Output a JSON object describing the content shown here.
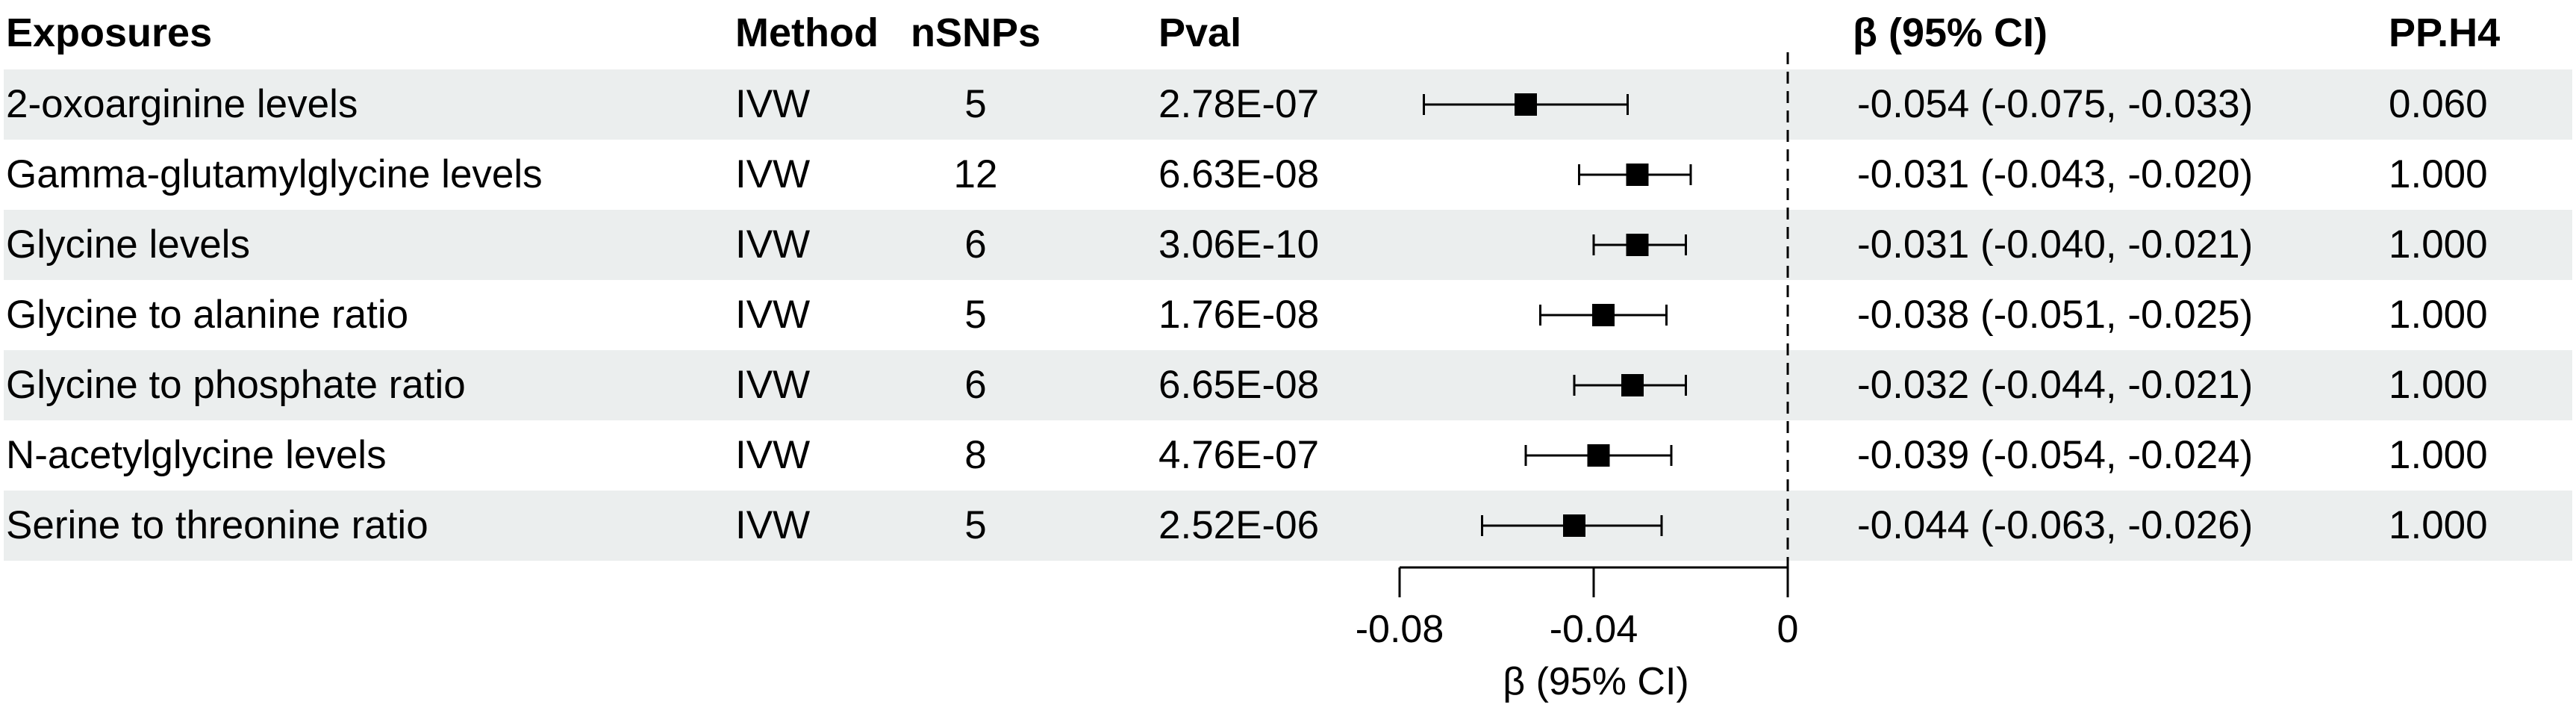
{
  "chart_data": {
    "type": "forest",
    "columns": {
      "exposure": "Exposures",
      "method": "Method",
      "nsnps": "nSNPs",
      "pval": "Pval",
      "ci": "β (95% CI)",
      "pph4": "PP.H4"
    },
    "rows": [
      {
        "exposure": "2-oxoarginine levels",
        "method": "IVW",
        "nsnps": "5",
        "pval": "2.78E-07",
        "beta": -0.054,
        "lower": -0.075,
        "upper": -0.033,
        "ci_text": "-0.054 (-0.075, -0.033)",
        "pph4": "0.060"
      },
      {
        "exposure": "Gamma-glutamylglycine levels",
        "method": "IVW",
        "nsnps": "12",
        "pval": "6.63E-08",
        "beta": -0.031,
        "lower": -0.043,
        "upper": -0.02,
        "ci_text": "-0.031 (-0.043, -0.020)",
        "pph4": "1.000"
      },
      {
        "exposure": "Glycine levels",
        "method": "IVW",
        "nsnps": "6",
        "pval": "3.06E-10",
        "beta": -0.031,
        "lower": -0.04,
        "upper": -0.021,
        "ci_text": "-0.031 (-0.040, -0.021)",
        "pph4": "1.000"
      },
      {
        "exposure": "Glycine to alanine ratio",
        "method": "IVW",
        "nsnps": "5",
        "pval": "1.76E-08",
        "beta": -0.038,
        "lower": -0.051,
        "upper": -0.025,
        "ci_text": "-0.038 (-0.051, -0.025)",
        "pph4": "1.000"
      },
      {
        "exposure": "Glycine to phosphate ratio",
        "method": "IVW",
        "nsnps": "6",
        "pval": "6.65E-08",
        "beta": -0.032,
        "lower": -0.044,
        "upper": -0.021,
        "ci_text": "-0.032 (-0.044, -0.021)",
        "pph4": "1.000"
      },
      {
        "exposure": "N-acetylglycine levels",
        "method": "IVW",
        "nsnps": "8",
        "pval": "4.76E-07",
        "beta": -0.039,
        "lower": -0.054,
        "upper": -0.024,
        "ci_text": "-0.039 (-0.054, -0.024)",
        "pph4": "1.000"
      },
      {
        "exposure": "Serine to threonine ratio",
        "method": "IVW",
        "nsnps": "5",
        "pval": "2.52E-06",
        "beta": -0.044,
        "lower": -0.063,
        "upper": -0.026,
        "ci_text": "-0.044 (-0.063, -0.026)",
        "pph4": "1.000"
      }
    ],
    "xaxis": {
      "label": "β (95% CI)",
      "range": [
        -0.08,
        0.0
      ],
      "ticks": [
        -0.08,
        -0.04,
        0
      ],
      "tick_labels": [
        "-0.08",
        "-0.04",
        "0"
      ]
    },
    "reference_line": 0,
    "colors": {
      "stripe": "#ebeeee",
      "marker": "#000000"
    }
  }
}
